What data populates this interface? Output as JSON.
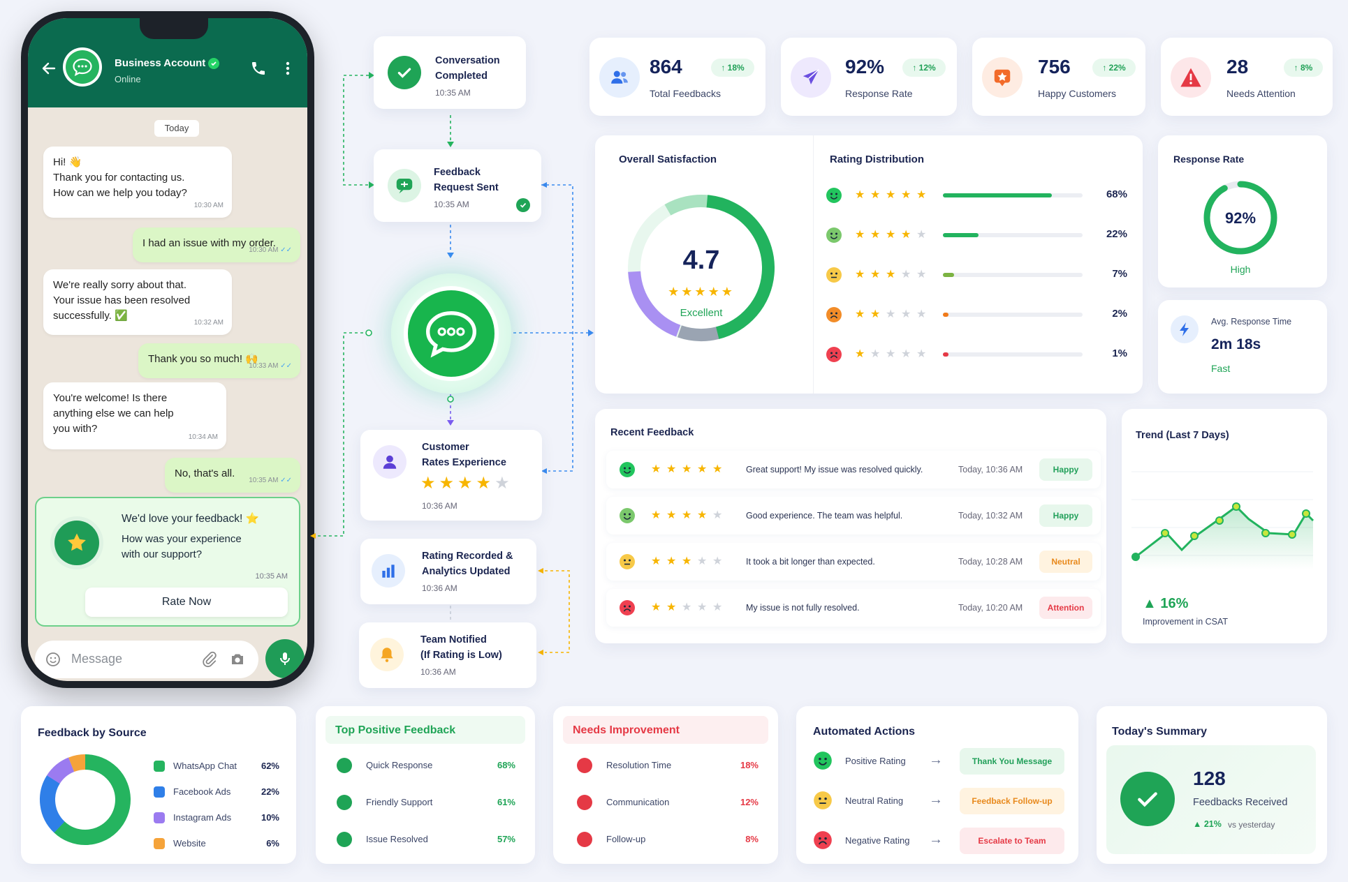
{
  "phone": {
    "contact_name": "Business Account",
    "contact_status": "Online",
    "date_chip": "Today",
    "messages": [
      {
        "dir": "in",
        "lines": [
          "Hi! 👋",
          "Thank you for contacting us.",
          "How can we help you today?"
        ],
        "time": "10:30 AM"
      },
      {
        "dir": "out",
        "lines": [
          "I had an issue with my order."
        ],
        "time": "10:30 AM"
      },
      {
        "dir": "in",
        "lines": [
          "We're really sorry about that.",
          "Your issue has been resolved",
          "successfully. ✅"
        ],
        "time": "10:32 AM"
      },
      {
        "dir": "out",
        "lines": [
          "Thank you so much! 🙌"
        ],
        "time": "10:33 AM"
      },
      {
        "dir": "in",
        "lines": [
          "You're welcome! Is there",
          "anything else we can help",
          "you with?"
        ],
        "time": "10:34 AM"
      },
      {
        "dir": "out",
        "lines": [
          "No, that's all."
        ],
        "time": "10:35 AM"
      }
    ],
    "feedback_card": {
      "title": "We'd love your feedback! ⭐",
      "line1": "How was your experience",
      "line2": "with our support?",
      "time": "10:35 AM",
      "button": "Rate Now"
    },
    "input_placeholder": "Message"
  },
  "flow": {
    "completed": {
      "l1": "Conversation",
      "l2": "Completed",
      "time": "10:35 AM"
    },
    "request": {
      "l1": "Feedback",
      "l2": "Request Sent",
      "time": "10:35 AM"
    },
    "rates": {
      "l1": "Customer",
      "l2": "Rates Experience",
      "time": "10:36 AM"
    },
    "recorded": {
      "l1": "Rating Recorded &",
      "l2": "Analytics Updated",
      "time": "10:36 AM"
    },
    "notified": {
      "l1": "Team Notified",
      "l2": "(If Rating is Low)",
      "time": "10:36 AM"
    }
  },
  "stats": [
    {
      "value": "864",
      "label": "Total Feedbacks",
      "change": "↑ 18%",
      "icon": "users-icon",
      "color": "#2f6fe8"
    },
    {
      "value": "92%",
      "label": "Response Rate",
      "change": "↑ 12%",
      "icon": "send-icon",
      "color": "#6b4fe0"
    },
    {
      "value": "756",
      "label": "Happy Customers",
      "change": "↑ 22%",
      "icon": "star-chat-icon",
      "color": "#f26b2a"
    },
    {
      "value": "28",
      "label": "Needs Attention",
      "change": "↑ 8%",
      "icon": "warning-icon",
      "color": "#e53945"
    }
  ],
  "overall": {
    "title": "Overall Satisfaction",
    "score": "4.7",
    "stars": 5,
    "label": "Excellent"
  },
  "distribution": {
    "title": "Rating Distribution",
    "rows": [
      {
        "stars": 5,
        "pct": "68%",
        "value": 68,
        "color": "#22b35e",
        "face": "#22c55e"
      },
      {
        "stars": 4,
        "pct": "22%",
        "value": 22,
        "color": "#22b35e",
        "face": "#7bc86c"
      },
      {
        "stars": 3,
        "pct": "7%",
        "value": 7,
        "color": "#7cb342",
        "face": "#f7c948"
      },
      {
        "stars": 2,
        "pct": "2%",
        "value": 2,
        "color": "#f07a1a",
        "face": "#f28c28"
      },
      {
        "stars": 1,
        "pct": "1%",
        "value": 1,
        "color": "#e53945",
        "face": "#ef4050"
      }
    ]
  },
  "response_rate": {
    "title": "Response Rate",
    "value": "92%",
    "level": 92,
    "label": "High"
  },
  "avg_response": {
    "label": "Avg. Response Time",
    "value": "2m 18s",
    "speed": "Fast"
  },
  "recent": {
    "title": "Recent Feedback",
    "rows": [
      {
        "stars": 5,
        "text": "Great support! My issue was resolved quickly.",
        "time": "Today, 10:36 AM",
        "tag": "Happy",
        "tag_color": "#22a05a",
        "tag_bg": "#e7f7ec",
        "face": "#22c55e"
      },
      {
        "stars": 4,
        "text": "Good experience. The team was helpful.",
        "time": "Today, 10:32 AM",
        "tag": "Happy",
        "tag_color": "#22a05a",
        "tag_bg": "#e7f7ec",
        "face": "#7bc86c"
      },
      {
        "stars": 3,
        "text": "It took a bit longer than expected.",
        "time": "Today, 10:28 AM",
        "tag": "Neutral",
        "tag_color": "#e8891c",
        "tag_bg": "#fff3e0",
        "face": "#f7c948"
      },
      {
        "stars": 2,
        "text": "My issue is not fully resolved.",
        "time": "Today, 10:20 AM",
        "tag": "Attention",
        "tag_color": "#e53945",
        "tag_bg": "#fdeaec",
        "face": "#ef4050"
      }
    ]
  },
  "trend": {
    "title": "Trend (Last 7 Days)",
    "change": "▲ 16%",
    "label": "Improvement in CSAT"
  },
  "source": {
    "title": "Feedback by Source",
    "items": [
      {
        "name": "WhatsApp Chat",
        "pct": "62%",
        "value": 62,
        "color": "#25b45f"
      },
      {
        "name": "Facebook Ads",
        "pct": "22%",
        "value": 22,
        "color": "#2f7fe8"
      },
      {
        "name": "Instagram Ads",
        "pct": "10%",
        "value": 10,
        "color": "#9b7bf0"
      },
      {
        "name": "Website",
        "pct": "6%",
        "value": 6,
        "color": "#f5a33a"
      }
    ]
  },
  "positive": {
    "title": "Top Positive Feedback",
    "items": [
      {
        "name": "Quick Response",
        "pct": "68%"
      },
      {
        "name": "Friendly Support",
        "pct": "61%"
      },
      {
        "name": "Issue Resolved",
        "pct": "57%"
      }
    ]
  },
  "improvement": {
    "title": "Needs Improvement",
    "items": [
      {
        "name": "Resolution Time",
        "pct": "18%"
      },
      {
        "name": "Communication",
        "pct": "12%"
      },
      {
        "name": "Follow-up",
        "pct": "8%"
      }
    ]
  },
  "actions": {
    "title": "Automated Actions",
    "items": [
      {
        "name": "Positive Rating",
        "action": "Thank You Message",
        "color": "#22a05a",
        "bg": "#e7f7ec",
        "face": "#22c55e"
      },
      {
        "name": "Neutral Rating",
        "action": "Feedback Follow-up",
        "color": "#e8891c",
        "bg": "#fff3e0",
        "face": "#f7c948"
      },
      {
        "name": "Negative Rating",
        "action": "Escalate to Team",
        "color": "#e53945",
        "bg": "#fdeaec",
        "face": "#ef4050"
      }
    ]
  },
  "summary": {
    "title": "Today's Summary",
    "value": "128",
    "label": "Feedbacks Received",
    "change": "▲ 21%",
    "compare": "vs yesterday"
  }
}
